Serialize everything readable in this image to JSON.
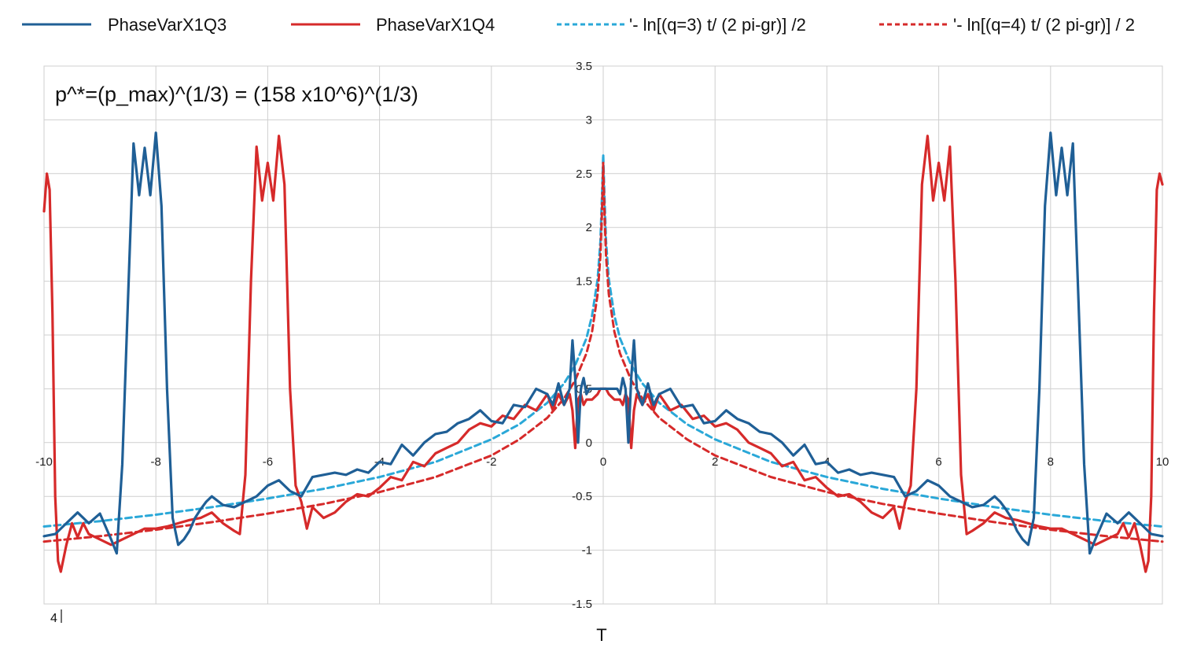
{
  "chart_data": {
    "type": "line",
    "title": "",
    "xlabel": "T",
    "ylabel": "",
    "xlim": [
      -10,
      10
    ],
    "ylim": [
      -1.5,
      3.5
    ],
    "x_ticks": [
      -10,
      -8,
      -6,
      -4,
      -2,
      0,
      2,
      4,
      6,
      8,
      10
    ],
    "y_ticks": [
      -1.5,
      -1,
      -0.5,
      0,
      0.5,
      1.5,
      2,
      2.5,
      3,
      3.5
    ],
    "grid": true,
    "legend_position": "top",
    "annotation": "p^*=(p_max)^(1/3) = (158 x10^6)^(1/3)",
    "corner_label": "4",
    "series": [
      {
        "name": "PhaseVarX1Q3",
        "color": "#1f5f96",
        "style": "solid",
        "x": [
          -10,
          -9.8,
          -9.6,
          -9.4,
          -9.2,
          -9.0,
          -8.8,
          -8.7,
          -8.6,
          -8.5,
          -8.4,
          -8.3,
          -8.2,
          -8.1,
          -8.0,
          -7.9,
          -7.8,
          -7.7,
          -7.6,
          -7.5,
          -7.4,
          -7.3,
          -7.2,
          -7.1,
          -7.0,
          -6.8,
          -6.6,
          -6.4,
          -6.2,
          -6.0,
          -5.8,
          -5.6,
          -5.4,
          -5.2,
          -5.0,
          -4.8,
          -4.6,
          -4.4,
          -4.2,
          -4.0,
          -3.8,
          -3.6,
          -3.4,
          -3.2,
          -3.0,
          -2.8,
          -2.6,
          -2.4,
          -2.2,
          -2.0,
          -1.8,
          -1.6,
          -1.4,
          -1.2,
          -1.0,
          -0.9,
          -0.8,
          -0.7,
          -0.6,
          -0.55,
          -0.5,
          -0.45,
          -0.4,
          -0.35,
          -0.3,
          -0.25,
          -0.2,
          -0.1,
          0,
          0.1,
          0.2,
          0.25,
          0.3,
          0.35,
          0.4,
          0.45,
          0.5,
          0.55,
          0.6,
          0.7,
          0.8,
          0.9,
          1.0,
          1.2,
          1.4,
          1.6,
          1.8,
          2.0,
          2.2,
          2.4,
          2.6,
          2.8,
          3.0,
          3.2,
          3.4,
          3.6,
          3.8,
          4.0,
          4.2,
          4.4,
          4.6,
          4.8,
          5.0,
          5.2,
          5.4,
          5.6,
          5.8,
          6.0,
          6.2,
          6.4,
          6.6,
          6.8,
          7.0,
          7.1,
          7.2,
          7.3,
          7.4,
          7.5,
          7.6,
          7.7,
          7.8,
          7.9,
          8.0,
          8.1,
          8.2,
          8.3,
          8.4,
          8.5,
          8.6,
          8.7,
          8.8,
          9.0,
          9.2,
          9.4,
          9.6,
          9.8,
          10
        ],
        "y": [
          -0.87,
          -0.85,
          -0.75,
          -0.65,
          -0.75,
          -0.66,
          -0.9,
          -1.03,
          -0.2,
          1.3,
          2.78,
          2.3,
          2.74,
          2.3,
          2.88,
          2.2,
          0.5,
          -0.7,
          -0.95,
          -0.9,
          -0.82,
          -0.7,
          -0.62,
          -0.55,
          -0.5,
          -0.58,
          -0.6,
          -0.55,
          -0.5,
          -0.4,
          -0.35,
          -0.45,
          -0.5,
          -0.32,
          -0.3,
          -0.28,
          -0.3,
          -0.25,
          -0.28,
          -0.18,
          -0.2,
          -0.02,
          -0.12,
          0.0,
          0.08,
          0.1,
          0.18,
          0.22,
          0.3,
          0.2,
          0.18,
          0.35,
          0.33,
          0.5,
          0.45,
          0.35,
          0.55,
          0.35,
          0.5,
          0.95,
          0.6,
          0.0,
          0.5,
          0.6,
          0.45,
          0.5,
          0.5,
          0.5,
          0.5,
          0.5,
          0.5,
          0.5,
          0.45,
          0.6,
          0.5,
          0.0,
          0.6,
          0.95,
          0.5,
          0.35,
          0.55,
          0.35,
          0.45,
          0.5,
          0.33,
          0.35,
          0.18,
          0.2,
          0.3,
          0.22,
          0.18,
          0.1,
          0.08,
          0.0,
          -0.12,
          -0.02,
          -0.2,
          -0.18,
          -0.28,
          -0.25,
          -0.3,
          -0.28,
          -0.3,
          -0.32,
          -0.5,
          -0.45,
          -0.35,
          -0.4,
          -0.5,
          -0.55,
          -0.6,
          -0.58,
          -0.5,
          -0.55,
          -0.62,
          -0.7,
          -0.82,
          -0.9,
          -0.95,
          -0.7,
          0.5,
          2.2,
          2.88,
          2.3,
          2.74,
          2.3,
          2.78,
          1.3,
          -0.2,
          -1.03,
          -0.9,
          -0.66,
          -0.75,
          -0.65,
          -0.75,
          -0.85,
          -0.87
        ]
      },
      {
        "name": "PhaseVarX1Q4",
        "color": "#d62a2a",
        "style": "solid",
        "x": [
          -10,
          -9.95,
          -9.9,
          -9.85,
          -9.8,
          -9.75,
          -9.7,
          -9.6,
          -9.5,
          -9.4,
          -9.3,
          -9.2,
          -9.0,
          -8.8,
          -8.6,
          -8.4,
          -8.2,
          -8.0,
          -7.8,
          -7.6,
          -7.4,
          -7.2,
          -7.0,
          -6.8,
          -6.6,
          -6.5,
          -6.4,
          -6.3,
          -6.2,
          -6.1,
          -6.0,
          -5.9,
          -5.8,
          -5.7,
          -5.6,
          -5.5,
          -5.4,
          -5.3,
          -5.2,
          -5.0,
          -4.8,
          -4.6,
          -4.4,
          -4.2,
          -4.0,
          -3.8,
          -3.6,
          -3.4,
          -3.2,
          -3.0,
          -2.8,
          -2.6,
          -2.4,
          -2.2,
          -2.0,
          -1.8,
          -1.6,
          -1.4,
          -1.2,
          -1.0,
          -0.9,
          -0.8,
          -0.7,
          -0.6,
          -0.55,
          -0.5,
          -0.45,
          -0.4,
          -0.35,
          -0.3,
          -0.2,
          -0.1,
          -0.05,
          0,
          0.05,
          0.1,
          0.2,
          0.3,
          0.35,
          0.4,
          0.45,
          0.5,
          0.55,
          0.6,
          0.7,
          0.8,
          0.9,
          1.0,
          1.2,
          1.4,
          1.6,
          1.8,
          2.0,
          2.2,
          2.4,
          2.6,
          2.8,
          3.0,
          3.2,
          3.4,
          3.6,
          3.8,
          4.0,
          4.2,
          4.4,
          4.6,
          4.8,
          5.0,
          5.2,
          5.3,
          5.4,
          5.5,
          5.6,
          5.7,
          5.8,
          5.9,
          6.0,
          6.1,
          6.2,
          6.3,
          6.4,
          6.5,
          6.6,
          6.8,
          7.0,
          7.2,
          7.4,
          7.6,
          7.8,
          8.0,
          8.2,
          8.4,
          8.6,
          8.8,
          9.0,
          9.2,
          9.3,
          9.4,
          9.5,
          9.6,
          9.7,
          9.75,
          9.8,
          9.85,
          9.9,
          9.95,
          10
        ],
        "y": [
          2.15,
          2.5,
          2.35,
          1.2,
          -0.5,
          -1.1,
          -1.2,
          -0.95,
          -0.75,
          -0.88,
          -0.75,
          -0.85,
          -0.9,
          -0.95,
          -0.9,
          -0.85,
          -0.8,
          -0.8,
          -0.78,
          -0.75,
          -0.72,
          -0.7,
          -0.65,
          -0.75,
          -0.82,
          -0.85,
          -0.3,
          1.5,
          2.75,
          2.25,
          2.6,
          2.25,
          2.85,
          2.4,
          0.5,
          -0.4,
          -0.55,
          -0.8,
          -0.6,
          -0.7,
          -0.65,
          -0.55,
          -0.48,
          -0.5,
          -0.42,
          -0.32,
          -0.35,
          -0.18,
          -0.22,
          -0.1,
          -0.05,
          0.0,
          0.12,
          0.18,
          0.15,
          0.25,
          0.22,
          0.35,
          0.3,
          0.45,
          0.3,
          0.45,
          0.35,
          0.45,
          0.3,
          -0.05,
          0.4,
          0.45,
          0.35,
          0.4,
          0.4,
          0.45,
          0.5,
          0.5,
          0.5,
          0.45,
          0.4,
          0.4,
          0.35,
          0.45,
          0.4,
          -0.05,
          0.3,
          0.45,
          0.35,
          0.45,
          0.3,
          0.45,
          0.3,
          0.35,
          0.22,
          0.25,
          0.15,
          0.18,
          0.12,
          0.0,
          -0.05,
          -0.1,
          -0.22,
          -0.18,
          -0.35,
          -0.32,
          -0.42,
          -0.5,
          -0.48,
          -0.55,
          -0.65,
          -0.7,
          -0.6,
          -0.8,
          -0.55,
          -0.4,
          0.5,
          2.4,
          2.85,
          2.25,
          2.6,
          2.25,
          2.75,
          1.5,
          -0.3,
          -0.85,
          -0.82,
          -0.75,
          -0.65,
          -0.7,
          -0.72,
          -0.75,
          -0.78,
          -0.8,
          -0.8,
          -0.85,
          -0.9,
          -0.95,
          -0.9,
          -0.85,
          -0.75,
          -0.88,
          -0.75,
          -0.95,
          -1.2,
          -1.1,
          -0.5,
          1.2,
          2.35,
          2.5,
          2.4
        ]
      },
      {
        "name": "'- ln[(q=3) t/ (2 pi-gr)] /2",
        "color": "#2aa8d8",
        "style": "dashed",
        "x": [
          -10,
          -9,
          -8,
          -7,
          -6,
          -5,
          -4,
          -3,
          -2,
          -1.5,
          -1,
          -0.7,
          -0.5,
          -0.3,
          -0.2,
          -0.1,
          -0.05,
          -0.02,
          0,
          0.02,
          0.05,
          0.1,
          0.2,
          0.3,
          0.5,
          0.7,
          1,
          1.5,
          2,
          3,
          4,
          5,
          6,
          7,
          8,
          9,
          10
        ],
        "y": [
          -0.78,
          -0.73,
          -0.67,
          -0.6,
          -0.52,
          -0.43,
          -0.32,
          -0.18,
          0.03,
          0.17,
          0.37,
          0.55,
          0.72,
          0.97,
          1.18,
          1.52,
          1.87,
          2.33,
          2.68,
          2.33,
          1.87,
          1.52,
          1.18,
          0.97,
          0.72,
          0.55,
          0.37,
          0.17,
          0.03,
          -0.18,
          -0.32,
          -0.43,
          -0.52,
          -0.6,
          -0.67,
          -0.73,
          -0.78
        ]
      },
      {
        "name": "'- ln[(q=4) t/ (2 pi-gr)] / 2",
        "color": "#d62a2a",
        "style": "dashed",
        "x": [
          -10,
          -9,
          -8,
          -7,
          -6,
          -5,
          -4,
          -3,
          -2,
          -1.5,
          -1,
          -0.7,
          -0.5,
          -0.3,
          -0.2,
          -0.1,
          -0.05,
          -0.02,
          0,
          0.02,
          0.05,
          0.1,
          0.2,
          0.3,
          0.5,
          0.7,
          1,
          1.5,
          2,
          3,
          4,
          5,
          6,
          7,
          8,
          9,
          10
        ],
        "y": [
          -0.92,
          -0.87,
          -0.81,
          -0.74,
          -0.66,
          -0.57,
          -0.46,
          -0.32,
          -0.12,
          0.03,
          0.23,
          0.41,
          0.58,
          0.83,
          1.03,
          1.38,
          1.73,
          2.19,
          2.6,
          2.19,
          1.73,
          1.38,
          1.03,
          0.83,
          0.58,
          0.41,
          0.23,
          0.03,
          -0.12,
          -0.32,
          -0.46,
          -0.57,
          -0.66,
          -0.74,
          -0.81,
          -0.87,
          -0.92
        ]
      }
    ]
  }
}
